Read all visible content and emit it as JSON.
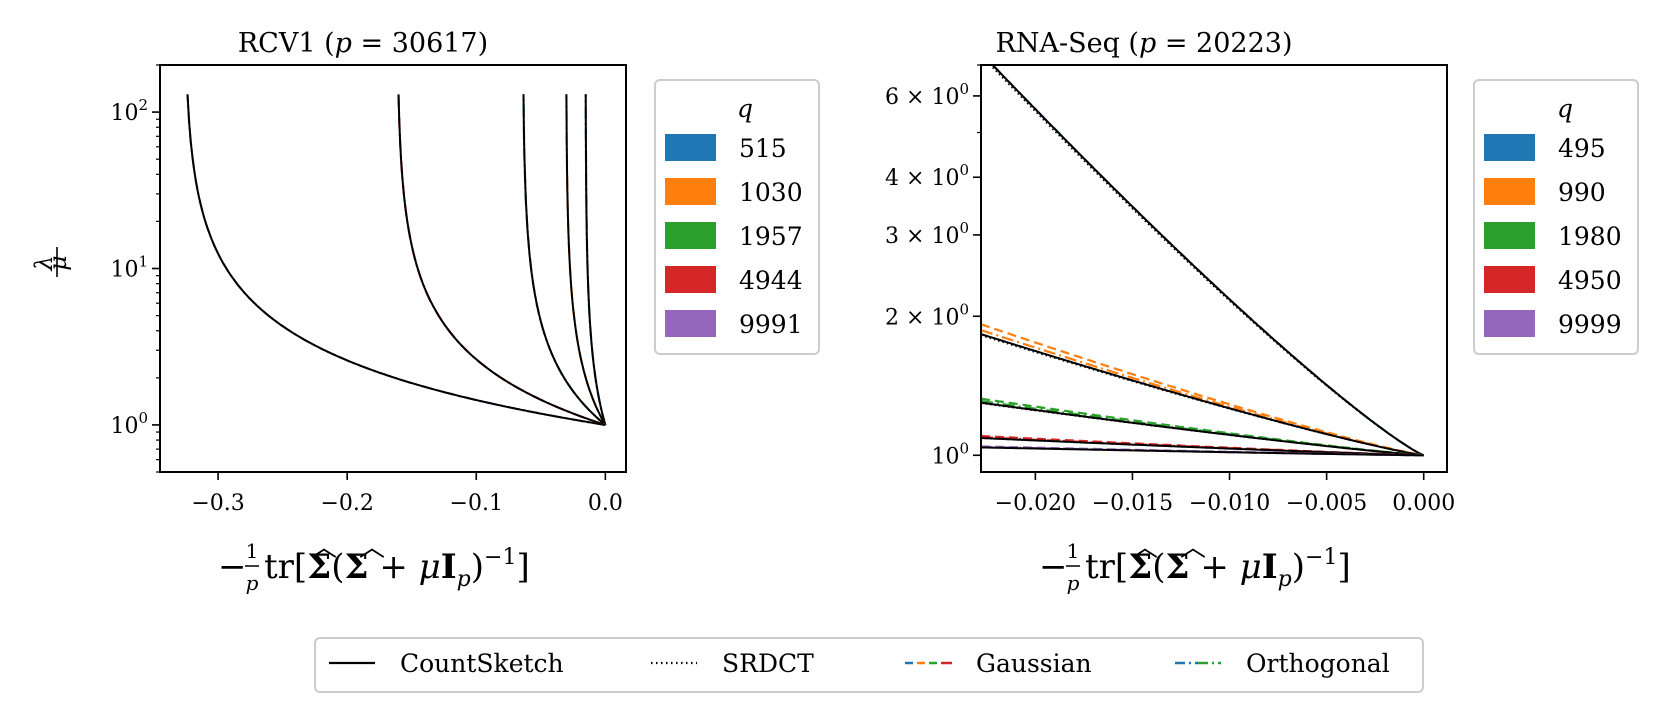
{
  "chart_data": [
    {
      "type": "line",
      "title_prefix": "RCV1 (",
      "title_p": "p",
      "title_eq": " = 30617)",
      "xlabel": "−(1/p) tr[Σ̂(Σ̂ + μI_p)^−1]",
      "ylabel": "μ/λ",
      "yscale": "log",
      "xlim": [
        -0.345,
        0.016
      ],
      "ylim": [
        0.5,
        200
      ],
      "xticks": [
        -0.3,
        -0.2,
        -0.1,
        0.0
      ],
      "xtick_labels": [
        "−0.3",
        "−0.2",
        "−0.1",
        "0.0"
      ],
      "yticks": [
        1,
        10,
        100
      ],
      "ytick_labels": [
        {
          "base": "10",
          "exp": "0"
        },
        {
          "base": "10",
          "exp": "1"
        },
        {
          "base": "10",
          "exp": "2"
        }
      ],
      "legend_title": "q",
      "legend_placement": "outside right",
      "series": [
        {
          "q": "515",
          "color": "#1f77b4",
          "x_asymptote": -0.0153,
          "deviation": 0.0
        },
        {
          "q": "1030",
          "color": "#ff7f0e",
          "x_asymptote": -0.0304,
          "deviation": 0.0
        },
        {
          "q": "1957",
          "color": "#2ca02c",
          "x_asymptote": -0.0639,
          "deviation": 0.02
        },
        {
          "q": "4944",
          "color": "#d62728",
          "x_asymptote": -0.1615,
          "deviation": 0.1
        },
        {
          "q": "9991",
          "color": "#9467bd",
          "x_asymptote": -0.3262,
          "deviation": 0.17
        }
      ]
    },
    {
      "type": "line",
      "title_prefix": "RNA-Seq (",
      "title_p": "p",
      "title_eq": " = 20223)",
      "xlabel": "−(1/p) tr[Σ̂(Σ̂ + μI_p)^−1]",
      "yscale": "log",
      "xlim": [
        -0.0228,
        0.0012
      ],
      "ylim": [
        0.92,
        7.0
      ],
      "xticks": [
        -0.02,
        -0.015,
        -0.01,
        -0.005,
        0.0
      ],
      "xtick_labels": [
        "−0.020",
        "−0.015",
        "−0.010",
        "−0.005",
        "0.000"
      ],
      "yticks": [
        1,
        2,
        3,
        4,
        6
      ],
      "ytick_labels": [
        {
          "base": "10",
          "exp": "0"
        },
        {
          "mult": "2",
          "base": "10",
          "exp": "0"
        },
        {
          "mult": "3",
          "base": "10",
          "exp": "0"
        },
        {
          "mult": "4",
          "base": "10",
          "exp": "0"
        },
        {
          "mult": "6",
          "base": "10",
          "exp": "0"
        }
      ],
      "legend_title": "q",
      "legend_placement": "outside right",
      "series": [
        {
          "q": "495",
          "color": "#1f77b4",
          "x_start": -0.0222,
          "y_start": 7.0,
          "y_shift": 0.0
        },
        {
          "q": "990",
          "color": "#ff7f0e",
          "x_start": -0.0228,
          "y_start": 1.83,
          "y_shift": 0.05
        },
        {
          "q": "1980",
          "color": "#2ca02c",
          "x_start": -0.0228,
          "y_start": 1.3,
          "y_shift": 0.02
        },
        {
          "q": "4950",
          "color": "#d62728",
          "x_start": -0.0228,
          "y_start": 1.09,
          "y_shift": 0.01
        },
        {
          "q": "9999",
          "color": "#9467bd",
          "x_start": -0.0228,
          "y_start": 1.04,
          "y_shift": 0.005
        }
      ]
    }
  ],
  "bottom_legend": {
    "entries": [
      {
        "label": "CountSketch",
        "style": "solid",
        "colors": [
          "#000000"
        ]
      },
      {
        "label": "SRDCT",
        "style": "dotted",
        "colors": [
          "#000000"
        ]
      },
      {
        "label": "Gaussian",
        "style": "dashed",
        "colors": [
          "#1f77b4",
          "#ff7f0e",
          "#2ca02c",
          "#d62728"
        ]
      },
      {
        "label": "Orthogonal",
        "style": "dashdot",
        "colors": [
          "#1f77b4",
          "#2ca02c"
        ]
      }
    ]
  }
}
